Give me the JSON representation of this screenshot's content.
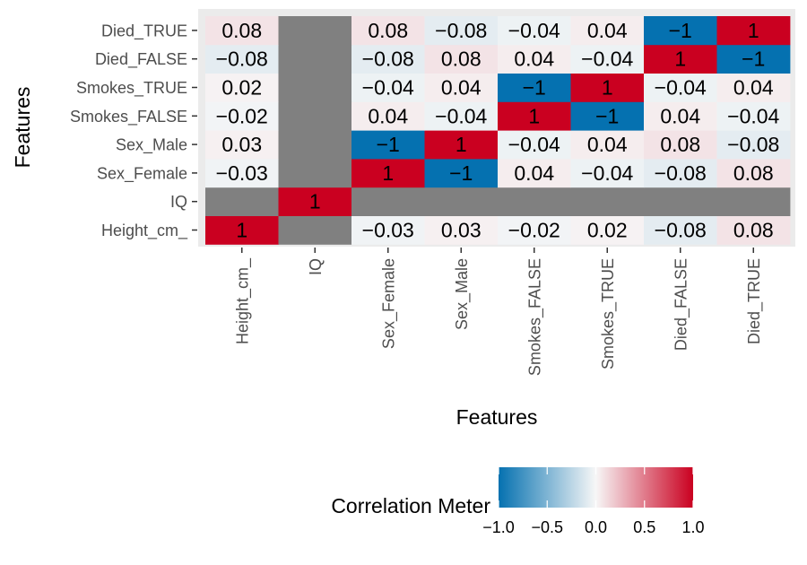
{
  "chart_data": {
    "type": "heatmap",
    "xlabel": "Features",
    "ylabel": "Features",
    "x_categories": [
      "Height_cm_",
      "IQ",
      "Sex_Female",
      "Sex_Male",
      "Smokes_FALSE",
      "Smokes_TRUE",
      "Died_FALSE",
      "Died_TRUE"
    ],
    "y_categories": [
      "Height_cm_",
      "IQ",
      "Sex_Female",
      "Sex_Male",
      "Smokes_FALSE",
      "Smokes_TRUE",
      "Died_FALSE",
      "Died_TRUE"
    ],
    "values": [
      [
        1,
        null,
        -0.03,
        0.03,
        -0.02,
        0.02,
        -0.08,
        0.08
      ],
      [
        null,
        1,
        null,
        null,
        null,
        null,
        null,
        null
      ],
      [
        -0.03,
        null,
        1,
        -1,
        0.04,
        -0.04,
        -0.08,
        0.08
      ],
      [
        0.03,
        null,
        -1,
        1,
        -0.04,
        0.04,
        0.08,
        -0.08
      ],
      [
        -0.02,
        null,
        0.04,
        -0.04,
        1,
        -1,
        0.04,
        -0.04
      ],
      [
        0.02,
        null,
        -0.04,
        0.04,
        -1,
        1,
        -0.04,
        0.04
      ],
      [
        -0.08,
        null,
        -0.08,
        0.08,
        0.04,
        -0.04,
        1,
        -1
      ],
      [
        0.08,
        null,
        0.08,
        -0.08,
        -0.04,
        0.04,
        -1,
        1
      ]
    ],
    "labels": [
      [
        "1",
        "",
        "−0.03",
        "0.03",
        "−0.02",
        "0.02",
        "−0.08",
        "0.08"
      ],
      [
        "",
        "1",
        "",
        "",
        "",
        "",
        "",
        ""
      ],
      [
        "−0.03",
        "",
        "1",
        "−1",
        "0.04",
        "−0.04",
        "−0.08",
        "0.08"
      ],
      [
        "0.03",
        "",
        "−1",
        "1",
        "−0.04",
        "0.04",
        "0.08",
        "−0.08"
      ],
      [
        "−0.02",
        "",
        "0.04",
        "−0.04",
        "1",
        "−1",
        "0.04",
        "−0.04"
      ],
      [
        "0.02",
        "",
        "−0.04",
        "0.04",
        "−1",
        "1",
        "−0.04",
        "0.04"
      ],
      [
        "−0.08",
        "",
        "−0.08",
        "0.08",
        "0.04",
        "−0.04",
        "1",
        "−1"
      ],
      [
        "0.08",
        "",
        "0.08",
        "−0.08",
        "−0.04",
        "0.04",
        "−1",
        "1"
      ]
    ],
    "na_color": "#808080",
    "legend": {
      "title": "Correlation Meter",
      "position": "bottom",
      "range": [
        -1,
        1
      ],
      "ticks": [
        -1,
        -0.5,
        0,
        0.5,
        1
      ],
      "tick_labels": [
        "−1.0",
        "−0.5",
        "0.0",
        "0.5",
        "1.0"
      ],
      "colors": [
        "#0571b0",
        "#f7f7f7",
        "#ca0020"
      ]
    }
  }
}
